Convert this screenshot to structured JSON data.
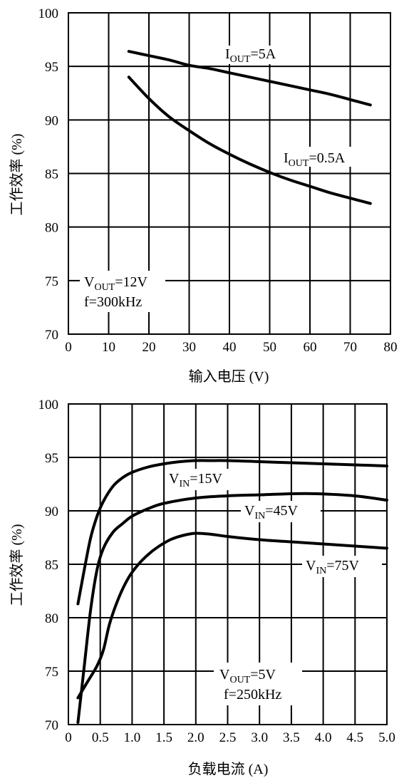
{
  "chart_data": [
    {
      "type": "line",
      "title": "",
      "xlabel": "输入电压 (V)",
      "ylabel": "工作效率 (%)",
      "xlim": [
        0,
        80
      ],
      "ylim": [
        70,
        100
      ],
      "xticks": [
        "0",
        "10",
        "20",
        "30",
        "40",
        "50",
        "60",
        "70",
        "80"
      ],
      "yticks": [
        "70",
        "75",
        "80",
        "85",
        "90",
        "95",
        "100"
      ],
      "grid": true,
      "series": [
        {
          "name": "IOUT=5A",
          "label_main": "I",
          "label_sub": "OUT",
          "label_rest": "=5A",
          "x": [
            15,
            20,
            25,
            30,
            35,
            40,
            45,
            50,
            55,
            60,
            65,
            70,
            75
          ],
          "y": [
            96.4,
            96.0,
            95.6,
            95.1,
            94.8,
            94.4,
            94.0,
            93.6,
            93.2,
            92.8,
            92.4,
            91.9,
            91.4
          ]
        },
        {
          "name": "IOUT=0.5A",
          "label_main": "I",
          "label_sub": "OUT",
          "label_rest": "=0.5A",
          "x": [
            15,
            20,
            25,
            30,
            35,
            40,
            45,
            50,
            55,
            60,
            65,
            70,
            75
          ],
          "y": [
            94.0,
            92.0,
            90.3,
            89.0,
            87.8,
            86.8,
            85.9,
            85.1,
            84.4,
            83.8,
            83.2,
            82.7,
            82.2
          ]
        }
      ],
      "annotation": {
        "line1_main": "V",
        "line1_sub": "OUT",
        "line1_rest": "=12V",
        "line2": "f=300kHz"
      }
    },
    {
      "type": "line",
      "title": "",
      "xlabel": "负载电流 (A)",
      "ylabel": "工作效率 (%)",
      "xlim": [
        0,
        5
      ],
      "ylim": [
        70,
        100
      ],
      "xticks": [
        "0",
        "0.5",
        "1.0",
        "1.5",
        "2.0",
        "2.5",
        "3.0",
        "3.5",
        "4.0",
        "4.5",
        "5.0"
      ],
      "yticks": [
        "70",
        "75",
        "80",
        "85",
        "90",
        "95",
        "100"
      ],
      "grid": true,
      "series": [
        {
          "name": "VIN=15V",
          "label_main": "V",
          "label_sub": "IN",
          "label_rest": "=15V",
          "x": [
            0.15,
            0.25,
            0.35,
            0.45,
            0.55,
            0.7,
            0.85,
            1.0,
            1.25,
            1.5,
            1.75,
            2.0,
            2.2,
            2.5,
            3.0,
            3.5,
            4.0,
            4.5,
            5.0
          ],
          "y": [
            81.3,
            84.5,
            87.5,
            89.5,
            90.9,
            92.3,
            93.1,
            93.6,
            94.1,
            94.4,
            94.6,
            94.7,
            94.7,
            94.7,
            94.6,
            94.5,
            94.4,
            94.3,
            94.2
          ]
        },
        {
          "name": "VIN=45V",
          "label_main": "V",
          "label_sub": "IN",
          "label_rest": "=45V",
          "x": [
            0.15,
            0.25,
            0.35,
            0.45,
            0.55,
            0.7,
            0.85,
            1.0,
            1.25,
            1.5,
            2.0,
            2.5,
            3.0,
            3.5,
            3.9,
            4.5,
            5.0
          ],
          "y": [
            70.2,
            75.5,
            80.8,
            84.5,
            86.5,
            88.0,
            88.8,
            89.5,
            90.2,
            90.7,
            91.2,
            91.4,
            91.5,
            91.6,
            91.6,
            91.4,
            91.0
          ]
        },
        {
          "name": "VIN=75V",
          "label_main": "V",
          "label_sub": "IN",
          "label_rest": "=75V",
          "x": [
            0.15,
            0.3,
            0.45,
            0.55,
            0.65,
            0.8,
            0.95,
            1.1,
            1.25,
            1.4,
            1.6,
            1.8,
            2.0,
            2.25,
            2.5,
            3.0,
            3.5,
            4.0,
            4.5,
            5.0
          ],
          "y": [
            72.5,
            74.0,
            75.5,
            77.0,
            79.5,
            82.0,
            83.8,
            85.0,
            85.9,
            86.6,
            87.3,
            87.7,
            87.9,
            87.8,
            87.6,
            87.3,
            87.1,
            86.9,
            86.7,
            86.5
          ]
        }
      ],
      "annotation": {
        "line1_main": "V",
        "line1_sub": "OUT",
        "line1_rest": "=5V",
        "line2": "f=250kHz"
      }
    }
  ]
}
